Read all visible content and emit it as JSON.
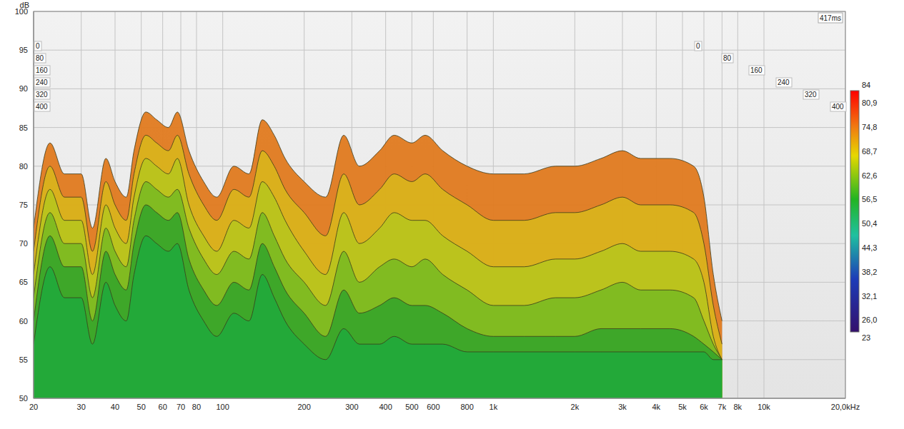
{
  "chart_data": {
    "type": "area",
    "ylabel": "dB",
    "annotations": [
      "417ms"
    ],
    "log": "x",
    "grid": true,
    "xlim": [
      20,
      20000
    ],
    "ylim": [
      50,
      100
    ],
    "xticks": [
      20,
      30,
      40,
      50,
      60,
      70,
      80,
      100,
      200,
      300,
      400,
      500,
      600,
      800,
      {
        "value": 1000,
        "label": "1k"
      },
      {
        "value": 2000,
        "label": "2k"
      },
      {
        "value": 3000,
        "label": "3k"
      },
      {
        "value": 4000,
        "label": "4k"
      },
      {
        "value": 5000,
        "label": "5k"
      },
      {
        "value": 6000,
        "label": "6k"
      },
      {
        "value": 7000,
        "label": "7k"
      },
      {
        "value": 8000,
        "label": "8k"
      },
      {
        "value": 10000,
        "label": "10k"
      },
      {
        "value": 20000,
        "label": "20,0kHz"
      }
    ],
    "yticks": [
      50,
      55,
      60,
      65,
      70,
      75,
      80,
      85,
      90,
      95,
      100
    ],
    "x": [
      20,
      23,
      26,
      30,
      33,
      37,
      40,
      44,
      47,
      52,
      57,
      63,
      68,
      75,
      85,
      95,
      110,
      125,
      140,
      155,
      170,
      200,
      240,
      280,
      320,
      380,
      430,
      500,
      560,
      650,
      800,
      1000,
      1300,
      1700,
      2000,
      2500,
      3000,
      3500,
      4500,
      5500,
      6000,
      6500,
      7000
    ],
    "series": [
      {
        "name": "0",
        "color": "#e07a1f",
        "values": [
          72,
          83,
          79,
          79,
          72,
          81,
          78,
          76,
          82,
          87,
          86,
          85,
          87,
          82,
          78,
          76,
          80,
          79,
          86,
          84,
          81,
          78,
          76,
          84,
          80,
          82,
          84,
          83,
          84,
          82,
          80,
          79,
          79,
          80,
          80,
          81,
          82,
          81,
          81,
          80,
          76,
          66,
          60
        ]
      },
      {
        "name": "80",
        "color": "#d9b21c",
        "values": [
          69,
          80,
          76,
          76,
          69,
          78,
          75,
          73,
          79,
          84,
          83,
          82,
          84,
          79,
          75,
          73,
          77,
          76,
          82,
          80,
          77,
          74,
          71,
          79,
          75,
          77,
          79,
          78,
          79,
          77,
          75,
          73,
          73,
          74,
          74,
          75,
          76,
          75,
          75,
          74,
          70,
          62,
          57
        ]
      },
      {
        "name": "160",
        "color": "#b9c41d",
        "values": [
          66,
          77,
          73,
          73,
          66,
          75,
          72,
          70,
          76,
          81,
          80,
          79,
          81,
          75,
          71,
          69,
          73,
          72,
          78,
          76,
          73,
          69,
          66,
          74,
          70,
          72,
          74,
          73,
          73,
          71,
          69,
          67,
          67,
          68,
          68,
          69,
          70,
          69,
          69,
          68,
          65,
          58,
          55
        ]
      },
      {
        "name": "240",
        "color": "#7dbb22",
        "values": [
          63,
          74,
          70,
          70,
          63,
          72,
          69,
          67,
          73,
          78,
          77,
          76,
          77,
          72,
          68,
          66,
          69,
          68,
          74,
          71,
          68,
          65,
          62,
          69,
          65,
          67,
          68,
          67,
          68,
          66,
          64,
          62,
          62,
          63,
          63,
          64,
          65,
          64,
          64,
          63,
          60,
          57,
          55
        ]
      },
      {
        "name": "320",
        "color": "#3aa52a",
        "values": [
          60,
          71,
          67,
          67,
          60,
          69,
          66,
          64,
          70,
          75,
          74,
          73,
          74,
          68,
          64,
          62,
          65,
          64,
          70,
          67,
          64,
          61,
          58,
          64,
          61,
          62,
          63,
          62,
          62,
          61,
          59,
          58,
          58,
          58,
          58,
          59,
          59,
          59,
          59,
          58,
          57,
          56,
          55
        ]
      },
      {
        "name": "400",
        "color": "#22a93a",
        "values": [
          57,
          67,
          63,
          63,
          57,
          65,
          62,
          60,
          66,
          71,
          70,
          69,
          70,
          64,
          60,
          58,
          61,
          60,
          66,
          63,
          60,
          57,
          55,
          59,
          57,
          57,
          58,
          57,
          57,
          57,
          56,
          56,
          56,
          56,
          56,
          56,
          56,
          56,
          56,
          56,
          56,
          55,
          55
        ]
      }
    ],
    "colorbar": {
      "range": [
        23,
        84
      ],
      "ticks": [
        84,
        {
          "value": 80.9,
          "label": "80,9"
        },
        {
          "value": 74.8,
          "label": "74,8"
        },
        {
          "value": 68.7,
          "label": "68,7"
        },
        {
          "value": 62.6,
          "label": "62,6"
        },
        {
          "value": 56.5,
          "label": "56,5"
        },
        {
          "value": 50.4,
          "label": "50,4"
        },
        {
          "value": 44.3,
          "label": "44,3"
        },
        {
          "value": 38.2,
          "label": "38,2"
        },
        {
          "value": 32.1,
          "label": "32,1"
        },
        {
          "value": 26.0,
          "label": "26,0"
        },
        23
      ]
    }
  }
}
